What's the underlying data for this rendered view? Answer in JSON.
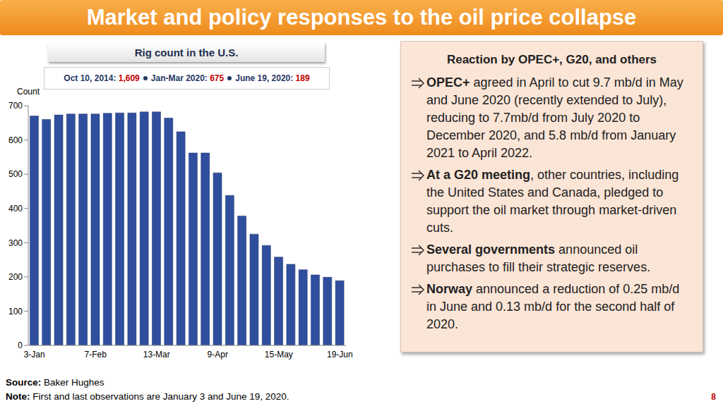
{
  "header": {
    "title": "Market and policy responses to the oil price collapse",
    "page": "8"
  },
  "chart_data": {
    "type": "bar",
    "title": "Rig count in the U.S.",
    "annotation": [
      {
        "label": "Oct 10, 2014:",
        "value": "1,609"
      },
      {
        "label": "Jan-Mar 2020:",
        "value": "675"
      },
      {
        "label": "June 19, 2020:",
        "value": "189"
      }
    ],
    "y_label": "Count",
    "categories": [
      "3-Jan",
      null,
      null,
      null,
      null,
      "7-Feb",
      null,
      null,
      null,
      null,
      "13-Mar",
      null,
      null,
      null,
      null,
      "9-Apr",
      null,
      null,
      null,
      null,
      "15-May",
      null,
      null,
      null,
      null,
      "19-Jun"
    ],
    "values": [
      670,
      660,
      673,
      676,
      676,
      676,
      678,
      679,
      679,
      682,
      682,
      664,
      624,
      562,
      562,
      504,
      438,
      378,
      325,
      292,
      258,
      237,
      221,
      206,
      199,
      189
    ],
    "color": "#2f4f9e",
    "ylim": [
      0,
      700
    ],
    "yticks": [
      0,
      100,
      200,
      300,
      400,
      500,
      600,
      700
    ],
    "grid": false
  },
  "panel": {
    "title": "Reaction by OPEC+, G20, and others",
    "bullets": [
      {
        "bold": "OPEC+",
        "text": "agreed in April to cut 9.7 mb/d in May and June 2020 (recently extended to July), reducing to 7.7mb/d from July 2020 to December 2020, and 5.8 mb/d from January 2021 to April 2022."
      },
      {
        "bold": "At a G20 meeting",
        "text": ", other countries, including the United States and Canada, pledged to support the oil market through market-driven cuts."
      },
      {
        "bold": "Several governments",
        "text": "announced oil purchases to fill their strategic reserves."
      },
      {
        "bold": "Norway",
        "text": "announced a reduction of 0.25 mb/d in June and 0.13 mb/d for the second half of 2020."
      }
    ]
  },
  "footer": {
    "notes": [
      {
        "label": "Source:",
        "text": "Baker Hughes"
      },
      {
        "label": "Note:",
        "text": "First and last observations are January 3 and June 19, 2020."
      }
    ]
  }
}
